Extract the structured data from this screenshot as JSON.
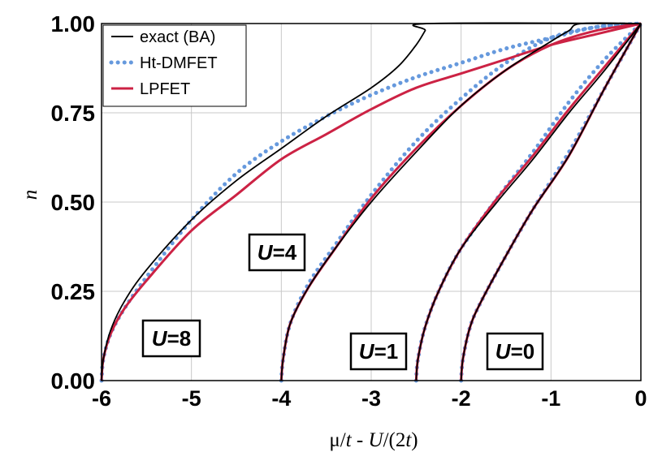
{
  "chart_data": {
    "type": "line",
    "xlabel_parts": {
      "mu": "μ",
      "t1": "t",
      "sep": " - ",
      "U": "U",
      "rest": "/(2",
      "t2": "t",
      "close": ")"
    },
    "ylabel": "n",
    "xlim": [
      -6,
      0
    ],
    "ylim": [
      0,
      1
    ],
    "x_ticks": [
      "-6",
      "-5",
      "-4",
      "-3",
      "-2",
      "-1",
      "0"
    ],
    "y_ticks": [
      "0.00",
      "0.25",
      "0.50",
      "0.75",
      "1.00"
    ],
    "grid": true,
    "legend_position": "top-left",
    "legend": [
      {
        "key": "exact",
        "label": "exact (BA)",
        "color": "#000000",
        "style": "solid"
      },
      {
        "key": "dmfet",
        "label": "Ht-DMFET",
        "color": "#6699dd",
        "style": "dotted"
      },
      {
        "key": "lpfet",
        "label": "LPFET",
        "color": "#cc2244",
        "style": "solid"
      }
    ],
    "annotations": [
      {
        "id": "U0",
        "letter": "U",
        "rest": "=0"
      },
      {
        "id": "U1",
        "letter": "U",
        "rest": "=1"
      },
      {
        "id": "U4",
        "letter": "U",
        "rest": "=4"
      },
      {
        "id": "U8",
        "letter": "U",
        "rest": "=8"
      }
    ],
    "groups": [
      {
        "U": 0,
        "exact": [
          [
            -2.0,
            0.0
          ],
          [
            -1.98,
            0.06
          ],
          [
            -1.9,
            0.15
          ],
          [
            -1.78,
            0.22
          ],
          [
            -1.5,
            0.35
          ],
          [
            -1.2,
            0.48
          ],
          [
            -0.8,
            0.63
          ],
          [
            -0.4,
            0.82
          ],
          [
            0.0,
            1.0
          ]
        ],
        "dmfet": [
          [
            -2.0,
            0.0
          ],
          [
            -1.98,
            0.06
          ],
          [
            -1.9,
            0.15
          ],
          [
            -1.78,
            0.22
          ],
          [
            -1.5,
            0.35
          ],
          [
            -1.2,
            0.48
          ],
          [
            -0.8,
            0.64
          ],
          [
            -0.4,
            0.82
          ],
          [
            0.0,
            1.0
          ]
        ],
        "lpfet": [
          [
            -2.0,
            0.0
          ],
          [
            -1.98,
            0.06
          ],
          [
            -1.9,
            0.15
          ],
          [
            -1.78,
            0.22
          ],
          [
            -1.5,
            0.35
          ],
          [
            -1.2,
            0.48
          ],
          [
            -0.8,
            0.63
          ],
          [
            -0.4,
            0.82
          ],
          [
            0.0,
            1.0
          ]
        ]
      },
      {
        "U": 1,
        "exact": [
          [
            -2.5,
            0.0
          ],
          [
            -2.48,
            0.06
          ],
          [
            -2.4,
            0.15
          ],
          [
            -2.25,
            0.25
          ],
          [
            -2.0,
            0.37
          ],
          [
            -1.6,
            0.5
          ],
          [
            -1.2,
            0.62
          ],
          [
            -0.8,
            0.75
          ],
          [
            -0.4,
            0.87
          ],
          [
            0.0,
            1.0
          ]
        ],
        "dmfet": [
          [
            -2.5,
            0.0
          ],
          [
            -2.48,
            0.06
          ],
          [
            -2.4,
            0.15
          ],
          [
            -2.25,
            0.25
          ],
          [
            -2.0,
            0.37
          ],
          [
            -1.6,
            0.51
          ],
          [
            -1.2,
            0.64
          ],
          [
            -0.8,
            0.78
          ],
          [
            -0.4,
            0.9
          ],
          [
            0.0,
            1.0
          ]
        ],
        "lpfet": [
          [
            -2.5,
            0.0
          ],
          [
            -2.48,
            0.06
          ],
          [
            -2.4,
            0.15
          ],
          [
            -2.25,
            0.25
          ],
          [
            -2.0,
            0.37
          ],
          [
            -1.6,
            0.51
          ],
          [
            -1.2,
            0.63
          ],
          [
            -0.8,
            0.76
          ],
          [
            -0.4,
            0.88
          ],
          [
            0.0,
            1.0
          ]
        ]
      },
      {
        "U": 4,
        "exact": [
          [
            -4.0,
            0.0
          ],
          [
            -3.98,
            0.06
          ],
          [
            -3.9,
            0.16
          ],
          [
            -3.7,
            0.26
          ],
          [
            -3.4,
            0.37
          ],
          [
            -3.0,
            0.5
          ],
          [
            -2.5,
            0.64
          ],
          [
            -2.0,
            0.77
          ],
          [
            -1.5,
            0.87
          ],
          [
            -1.0,
            0.95
          ],
          [
            -0.8,
            0.98
          ],
          [
            -0.66,
            1.0
          ],
          [
            0.0,
            1.0
          ]
        ],
        "dmfet": [
          [
            -4.0,
            0.0
          ],
          [
            -3.98,
            0.06
          ],
          [
            -3.9,
            0.16
          ],
          [
            -3.7,
            0.27
          ],
          [
            -3.4,
            0.38
          ],
          [
            -3.0,
            0.52
          ],
          [
            -2.5,
            0.67
          ],
          [
            -2.0,
            0.79
          ],
          [
            -1.5,
            0.89
          ],
          [
            -1.0,
            0.96
          ],
          [
            -0.5,
            0.99
          ],
          [
            0.0,
            1.0
          ]
        ],
        "lpfet": [
          [
            -4.0,
            0.0
          ],
          [
            -3.98,
            0.06
          ],
          [
            -3.9,
            0.16
          ],
          [
            -3.7,
            0.26
          ],
          [
            -3.4,
            0.37
          ],
          [
            -3.0,
            0.51
          ],
          [
            -2.5,
            0.65
          ],
          [
            -2.0,
            0.77
          ],
          [
            -1.5,
            0.87
          ],
          [
            -1.0,
            0.94
          ],
          [
            -0.5,
            0.98
          ],
          [
            0.0,
            1.0
          ]
        ]
      },
      {
        "U": 8,
        "exact": [
          [
            -6.0,
            0.0
          ],
          [
            -5.98,
            0.06
          ],
          [
            -5.9,
            0.14
          ],
          [
            -5.75,
            0.22
          ],
          [
            -5.5,
            0.31
          ],
          [
            -5.0,
            0.45
          ],
          [
            -4.5,
            0.56
          ],
          [
            -4.0,
            0.65
          ],
          [
            -3.5,
            0.74
          ],
          [
            -3.0,
            0.82
          ],
          [
            -2.7,
            0.88
          ],
          [
            -2.5,
            0.94
          ],
          [
            -2.4,
            0.98
          ],
          [
            -2.35,
            1.0
          ],
          [
            0.0,
            1.0
          ]
        ],
        "dmfet": [
          [
            -6.0,
            0.0
          ],
          [
            -5.98,
            0.06
          ],
          [
            -5.9,
            0.13
          ],
          [
            -5.75,
            0.2
          ],
          [
            -5.5,
            0.29
          ],
          [
            -5.0,
            0.45
          ],
          [
            -4.5,
            0.58
          ],
          [
            -4.0,
            0.67
          ],
          [
            -3.5,
            0.74
          ],
          [
            -3.0,
            0.8
          ],
          [
            -2.5,
            0.85
          ],
          [
            -2.0,
            0.89
          ],
          [
            -1.5,
            0.93
          ],
          [
            -1.0,
            0.96
          ],
          [
            -0.5,
            0.99
          ],
          [
            0.0,
            1.0
          ]
        ],
        "lpfet": [
          [
            -6.0,
            0.0
          ],
          [
            -5.98,
            0.06
          ],
          [
            -5.9,
            0.13
          ],
          [
            -5.75,
            0.2
          ],
          [
            -5.5,
            0.28
          ],
          [
            -5.0,
            0.42
          ],
          [
            -4.5,
            0.52
          ],
          [
            -4.0,
            0.62
          ],
          [
            -3.5,
            0.69
          ],
          [
            -3.0,
            0.76
          ],
          [
            -2.5,
            0.82
          ],
          [
            -2.0,
            0.86
          ],
          [
            -1.5,
            0.9
          ],
          [
            -1.0,
            0.94
          ],
          [
            -0.5,
            0.97
          ],
          [
            0.0,
            1.0
          ]
        ]
      }
    ]
  }
}
